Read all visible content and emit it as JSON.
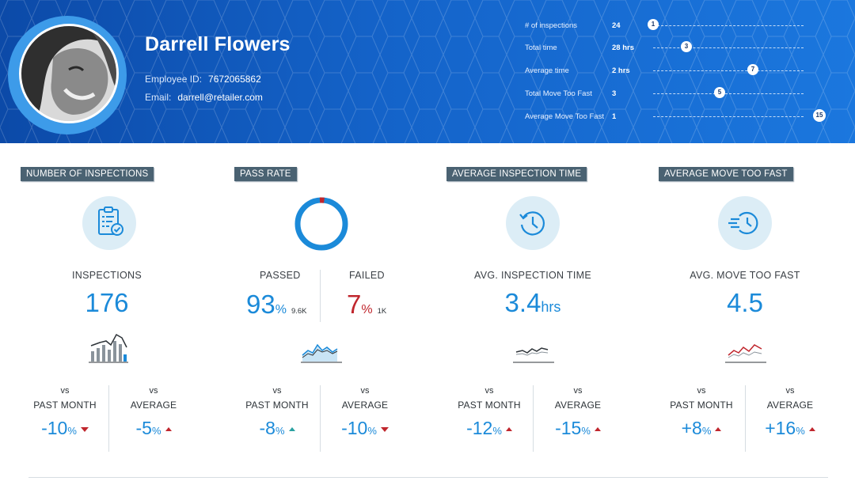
{
  "profile": {
    "name": "Darrell Flowers",
    "employee_id_label": "Employee ID:",
    "employee_id": "7672065862",
    "email_label": "Email:",
    "email": "darrell@retailer.com"
  },
  "summary_stats": [
    {
      "label": "# of inspections",
      "value": "24",
      "marker": "1",
      "position": 0.0
    },
    {
      "label": "Total time",
      "value": "28 hrs",
      "marker": "3",
      "position": 0.22
    },
    {
      "label": "Average time",
      "value": "2 hrs",
      "marker": "7",
      "position": 0.67
    },
    {
      "label": "Total Move Too Fast",
      "value": "3",
      "marker": "5",
      "position": 0.45
    },
    {
      "label": "Average Move Too Fast",
      "value": "1",
      "marker": "15",
      "position": 1.0
    }
  ],
  "panels": {
    "inspections": {
      "tag": "NUMBER OF INSPECTIONS",
      "label": "INSPECTIONS",
      "value": "176",
      "cmp": [
        {
          "vs": "vs",
          "period": "PAST MONTH",
          "value": "-10",
          "unit": "%",
          "trend": "down"
        },
        {
          "vs": "vs",
          "period": "AVERAGE",
          "value": "-5",
          "unit": "%",
          "trend": "up"
        }
      ]
    },
    "pass_rate": {
      "tag": "PASS RATE",
      "passed_label": "PASSED",
      "passed_value": "93",
      "passed_unit": "%",
      "passed_count": "9.6K",
      "failed_label": "FAILED",
      "failed_value": "7",
      "failed_unit": "%",
      "failed_count": "1K",
      "cmp": [
        {
          "vs": "vs",
          "period": "PAST MONTH",
          "value": "-8",
          "unit": "%",
          "trend": "up"
        },
        {
          "vs": "vs",
          "period": "AVERAGE",
          "value": "-10",
          "unit": "%",
          "trend": "down"
        }
      ]
    },
    "avg_time": {
      "tag": "AVERAGE INSPECTION TIME",
      "label": "AVG. INSPECTION TIME",
      "value": "3.4",
      "unit": "hrs",
      "cmp": [
        {
          "vs": "vs",
          "period": "PAST MONTH",
          "value": "-12",
          "unit": "%",
          "trend": "up"
        },
        {
          "vs": "vs",
          "period": "AVERAGE",
          "value": "-15",
          "unit": "%",
          "trend": "up"
        }
      ]
    },
    "move_fast": {
      "tag": "AVERAGE MOVE TOO FAST",
      "label": "AVG. MOVE TOO FAST",
      "value": "4.5",
      "cmp": [
        {
          "vs": "vs",
          "period": "PAST MONTH",
          "value": "+8",
          "unit": "%",
          "trend": "up"
        },
        {
          "vs": "vs",
          "period": "AVERAGE",
          "value": "+16",
          "unit": "%",
          "trend": "up"
        }
      ]
    }
  },
  "colors": {
    "accent": "#1b8ad9",
    "danger": "#c0262d",
    "positive": "#2aa1a1"
  }
}
